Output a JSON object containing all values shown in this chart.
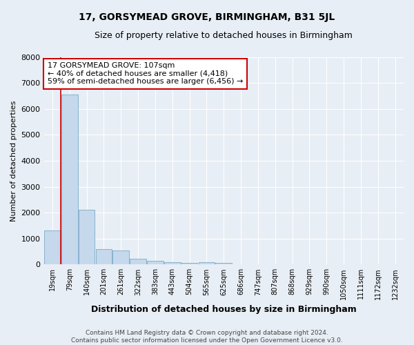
{
  "title": "17, GORSYMEAD GROVE, BIRMINGHAM, B31 5JL",
  "subtitle": "Size of property relative to detached houses in Birmingham",
  "xlabel": "Distribution of detached houses by size in Birmingham",
  "ylabel": "Number of detached properties",
  "footer_line1": "Contains HM Land Registry data © Crown copyright and database right 2024.",
  "footer_line2": "Contains public sector information licensed under the Open Government Licence v3.0.",
  "property_label": "17 GORSYMEAD GROVE: 107sqm",
  "annotation_line1": "← 40% of detached houses are smaller (4,418)",
  "annotation_line2": "59% of semi-detached houses are larger (6,456) →",
  "bar_categories": [
    "19sqm",
    "79sqm",
    "140sqm",
    "201sqm",
    "261sqm",
    "322sqm",
    "383sqm",
    "443sqm",
    "504sqm",
    "565sqm",
    "625sqm",
    "686sqm",
    "747sqm",
    "807sqm",
    "868sqm",
    "929sqm",
    "990sqm",
    "1050sqm",
    "1111sqm",
    "1172sqm",
    "1232sqm"
  ],
  "bar_values": [
    1300,
    6550,
    2100,
    590,
    550,
    210,
    130,
    80,
    55,
    90,
    55,
    0,
    0,
    0,
    0,
    0,
    0,
    0,
    0,
    0,
    0
  ],
  "bar_color": "#c5d8ec",
  "bar_edge_color": "#7aaac8",
  "red_line_x": 0.5,
  "ylim": [
    0,
    8000
  ],
  "yticks": [
    0,
    1000,
    2000,
    3000,
    4000,
    5000,
    6000,
    7000,
    8000
  ],
  "background_color": "#e8eef5",
  "plot_bg_color": "#e8eef5",
  "grid_color": "#ffffff",
  "annotation_box_color": "#ffffff",
  "annotation_box_edge": "#cc0000",
  "red_line_color": "#cc0000",
  "title_fontsize": 10,
  "subtitle_fontsize": 9,
  "ylabel_fontsize": 8,
  "xlabel_fontsize": 9,
  "tick_fontsize": 7,
  "ytick_fontsize": 8,
  "footer_fontsize": 6.5,
  "annot_fontsize": 8
}
